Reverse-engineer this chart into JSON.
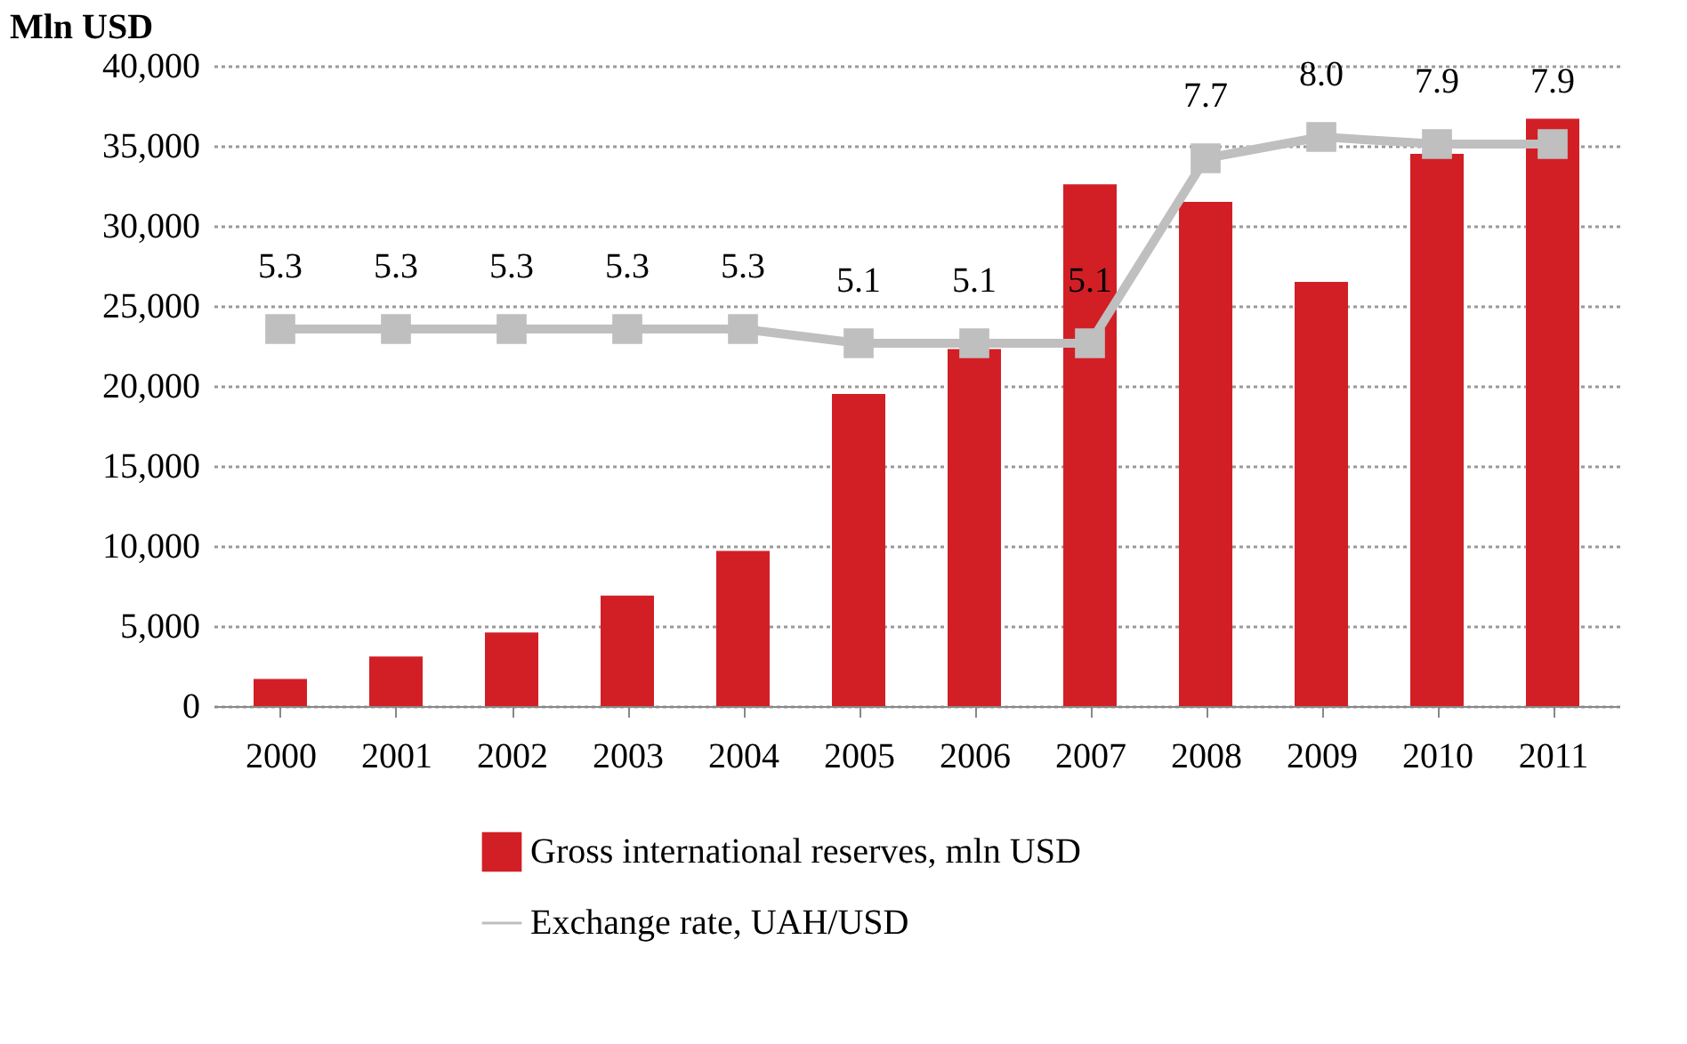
{
  "chart_data": {
    "type": "bar",
    "ylabel": "Mln USD",
    "categories": [
      "2000",
      "2001",
      "2002",
      "2003",
      "2004",
      "2005",
      "2006",
      "2007",
      "2008",
      "2009",
      "2010",
      "2011"
    ],
    "series": [
      {
        "name": "Gross international reserves, mln USD",
        "color": "#d21f26",
        "values": [
          1700,
          3100,
          4600,
          6900,
          9700,
          19500,
          22300,
          32600,
          31500,
          26500,
          34500,
          36700
        ]
      },
      {
        "name": "Exchange rate, UAH/USD",
        "type": "line",
        "axis": "y2",
        "color": "#bfbfbf",
        "marker": "square",
        "value_labels": [
          "5.3",
          "5.3",
          "5.3",
          "5.3",
          "5.3",
          "5.1",
          "5.1",
          "5.1",
          "7.7",
          "8.0",
          "7.9",
          "7.9"
        ],
        "values": [
          5.3,
          5.3,
          5.3,
          5.3,
          5.3,
          5.1,
          5.1,
          5.1,
          7.7,
          8.0,
          7.9,
          7.9
        ]
      }
    ],
    "ylim": [
      0,
      40000
    ],
    "yticks": [
      0,
      {
        "value": 5000,
        "label": "5,000"
      },
      {
        "value": 10000,
        "label": "10,000"
      },
      {
        "value": 15000,
        "label": "15,000"
      },
      {
        "value": 20000,
        "label": "20,000"
      },
      {
        "value": 25000,
        "label": "25,000"
      },
      {
        "value": 30000,
        "label": "30,000"
      },
      {
        "value": 35000,
        "label": "35,000"
      },
      {
        "value": 40000,
        "label": "40,000"
      }
    ],
    "y2lim": [
      0,
      9
    ],
    "grid": "y",
    "legend": "bottom",
    "tick_labels": "xy"
  }
}
